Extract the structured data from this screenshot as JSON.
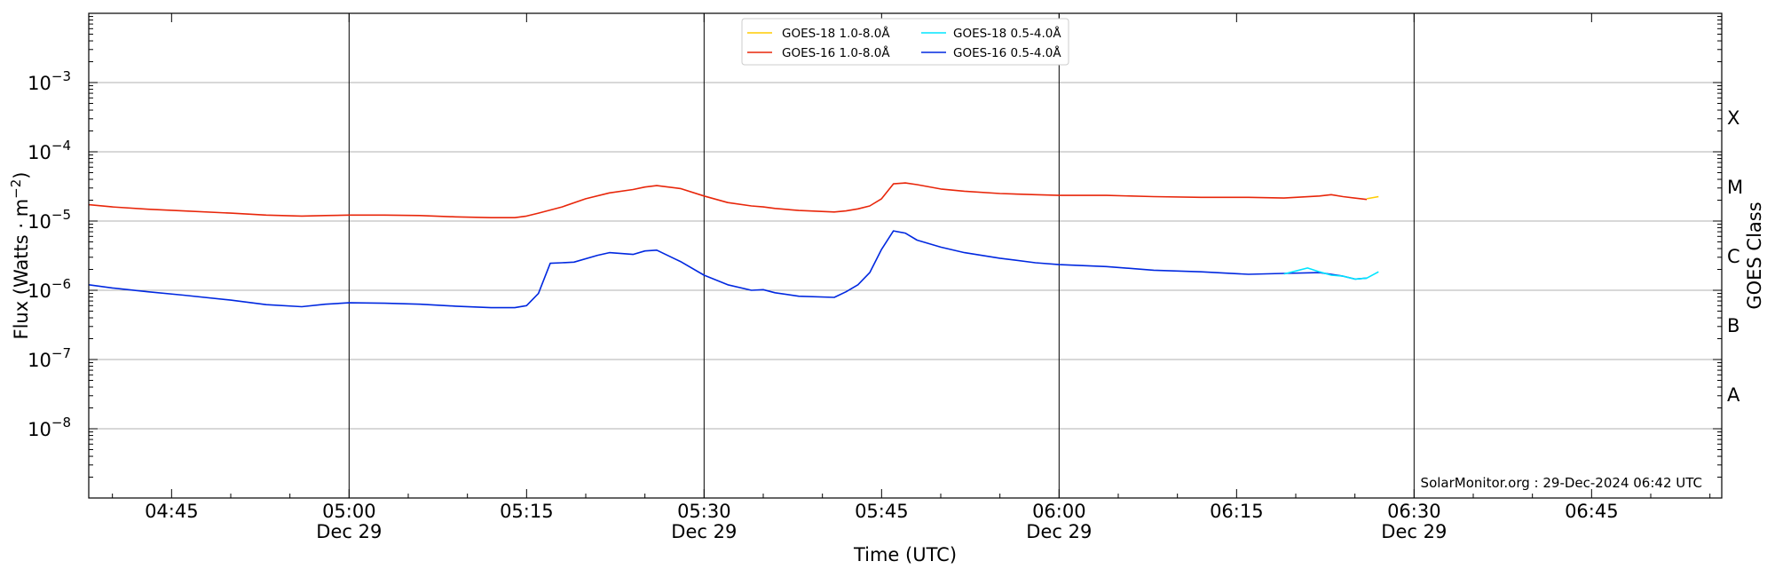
{
  "chart_data": {
    "type": "line",
    "xlabel": "Time (UTC)",
    "ylabel_main": "Flux (Watts · m",
    "ylabel_sup": "−2",
    "ylabel_close": ")",
    "y2label": "GOES Class",
    "y_scale": "log",
    "ylim": [
      1e-09,
      0.01
    ],
    "xlim": [
      "04:38",
      "06:56"
    ],
    "grid": "horizontal at decades; vertical lines at 05:00, 05:30, 06:00, 06:30",
    "x_ticks": [
      {
        "t": "04:45",
        "label": "04:45",
        "date": ""
      },
      {
        "t": "05:00",
        "label": "05:00",
        "date": "Dec 29"
      },
      {
        "t": "05:15",
        "label": "05:15",
        "date": ""
      },
      {
        "t": "05:30",
        "label": "05:30",
        "date": "Dec 29"
      },
      {
        "t": "05:45",
        "label": "05:45",
        "date": ""
      },
      {
        "t": "06:00",
        "label": "06:00",
        "date": "Dec 29"
      },
      {
        "t": "06:15",
        "label": "06:15",
        "date": ""
      },
      {
        "t": "06:30",
        "label": "06:30",
        "date": "Dec 29"
      },
      {
        "t": "06:45",
        "label": "06:45",
        "date": ""
      }
    ],
    "y_ticks": [
      {
        "exp": -8,
        "base": "10",
        "sup": "−8"
      },
      {
        "exp": -7,
        "base": "10",
        "sup": "−7"
      },
      {
        "exp": -6,
        "base": "10",
        "sup": "−6"
      },
      {
        "exp": -5,
        "base": "10",
        "sup": "−5"
      },
      {
        "exp": -4,
        "base": "10",
        "sup": "−4"
      },
      {
        "exp": -3,
        "base": "10",
        "sup": "−3"
      }
    ],
    "goes_classes": [
      {
        "label": "A",
        "exp": -7.5
      },
      {
        "label": "B",
        "exp": -6.5
      },
      {
        "label": "C",
        "exp": -5.5
      },
      {
        "label": "M",
        "exp": -4.5
      },
      {
        "label": "X",
        "exp": -3.5
      }
    ],
    "legend_position": "top-center",
    "series": [
      {
        "name": "GOES-18 1.0-8.0Å",
        "color": "#ffcc00",
        "x": [
          "06:26",
          "06:27"
        ],
        "y": [
          2.1e-05,
          2.25e-05
        ]
      },
      {
        "name": "GOES-18 0.5-4.0Å",
        "color": "#00e5ff",
        "x": [
          "06:19",
          "06:20",
          "06:21",
          "06:22",
          "06:23",
          "06:24",
          "06:25",
          "06:26",
          "06:27"
        ],
        "y": [
          1.72e-06,
          1.9e-06,
          2.1e-06,
          1.85e-06,
          1.65e-06,
          1.6e-06,
          1.45e-06,
          1.5e-06,
          1.85e-06
        ]
      },
      {
        "name": "GOES-16 1.0-8.0Å",
        "color": "#e8260a",
        "x": [
          "04:38",
          "04:40",
          "04:43",
          "04:46",
          "04:50",
          "04:53",
          "04:56",
          "04:58",
          "05:00",
          "05:03",
          "05:06",
          "05:09",
          "05:12",
          "05:14",
          "05:15",
          "05:16",
          "05:18",
          "05:20",
          "05:22",
          "05:24",
          "05:25",
          "05:26",
          "05:28",
          "05:30",
          "05:32",
          "05:34",
          "05:35",
          "05:36",
          "05:38",
          "05:41",
          "05:42",
          "05:43",
          "05:44",
          "05:45",
          "05:46",
          "05:47",
          "05:48",
          "05:50",
          "05:52",
          "05:55",
          "05:58",
          "06:00",
          "06:04",
          "06:08",
          "06:12",
          "06:16",
          "06:19",
          "06:22",
          "06:23",
          "06:24",
          "06:26"
        ],
        "y": [
          1.72e-05,
          1.6e-05,
          1.48e-05,
          1.4e-05,
          1.3e-05,
          1.22e-05,
          1.18e-05,
          1.2e-05,
          1.22e-05,
          1.22e-05,
          1.2e-05,
          1.15e-05,
          1.12e-05,
          1.12e-05,
          1.18e-05,
          1.3e-05,
          1.6e-05,
          2.1e-05,
          2.55e-05,
          2.85e-05,
          3.1e-05,
          3.25e-05,
          2.95e-05,
          2.3e-05,
          1.85e-05,
          1.65e-05,
          1.6e-05,
          1.52e-05,
          1.42e-05,
          1.35e-05,
          1.4e-05,
          1.5e-05,
          1.65e-05,
          2.1e-05,
          3.45e-05,
          3.55e-05,
          3.35e-05,
          2.9e-05,
          2.7e-05,
          2.5e-05,
          2.4e-05,
          2.35e-05,
          2.35e-05,
          2.25e-05,
          2.2e-05,
          2.2e-05,
          2.15e-05,
          2.3e-05,
          2.4e-05,
          2.25e-05,
          2.05e-05
        ]
      },
      {
        "name": "GOES-16 0.5-4.0Å",
        "color": "#0028e0",
        "x": [
          "04:38",
          "04:40",
          "04:43",
          "04:46",
          "04:50",
          "04:53",
          "04:56",
          "04:58",
          "05:00",
          "05:03",
          "05:06",
          "05:09",
          "05:12",
          "05:14",
          "05:15",
          "05:16",
          "05:17",
          "05:18",
          "05:19",
          "05:21",
          "05:22",
          "05:24",
          "05:25",
          "05:26",
          "05:28",
          "05:30",
          "05:32",
          "05:34",
          "05:35",
          "05:36",
          "05:38",
          "05:41",
          "05:42",
          "05:43",
          "05:44",
          "05:45",
          "05:46",
          "05:47",
          "05:48",
          "05:50",
          "05:52",
          "05:55",
          "05:58",
          "06:00",
          "06:04",
          "06:08",
          "06:12",
          "06:16",
          "06:19",
          "06:22",
          "06:24",
          "06:25",
          "06:26"
        ],
        "y": [
          1.2e-06,
          1.08e-06,
          9.5e-07,
          8.5e-07,
          7.2e-07,
          6.2e-07,
          5.8e-07,
          6.3e-07,
          6.6e-07,
          6.5e-07,
          6.3e-07,
          5.9e-07,
          5.6e-07,
          5.6e-07,
          6e-07,
          9e-07,
          2.45e-06,
          2.5e-06,
          2.55e-06,
          3.2e-06,
          3.5e-06,
          3.3e-06,
          3.7e-06,
          3.8e-06,
          2.6e-06,
          1.65e-06,
          1.2e-06,
          1e-06,
          1.02e-06,
          9.2e-07,
          8.2e-07,
          7.9e-07,
          9.5e-07,
          1.2e-06,
          1.8e-06,
          3.9e-06,
          7.2e-06,
          6.7e-06,
          5.3e-06,
          4.2e-06,
          3.5e-06,
          2.9e-06,
          2.5e-06,
          2.35e-06,
          2.2e-06,
          1.95e-06,
          1.85e-06,
          1.7e-06,
          1.75e-06,
          1.8e-06,
          1.6e-06,
          1.45e-06,
          1.5e-06
        ]
      }
    ],
    "credit": "SolarMonitor.org : 29-Dec-2024 06:42 UTC"
  }
}
